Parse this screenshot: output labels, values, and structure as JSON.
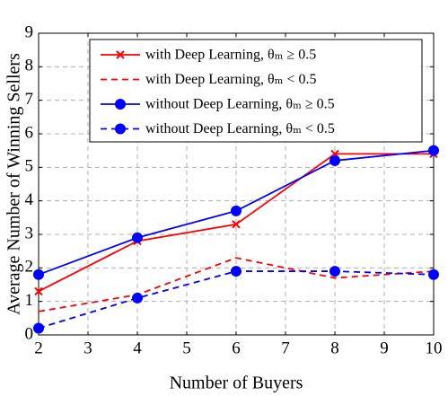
{
  "chart_data": {
    "type": "line",
    "xlabel": "Number of Buyers",
    "ylabel": "Average Number of Winning Sellers",
    "x": [
      2,
      4,
      6,
      8,
      10
    ],
    "series": [
      {
        "name": "with Deep Learning, θₘ ≥ 0.5",
        "color": "#ff0000",
        "linestyle": "solid",
        "marker": "x",
        "values": [
          1.3,
          2.8,
          3.3,
          5.4,
          5.4
        ]
      },
      {
        "name": "with Deep Learning, θₘ < 0.5",
        "color": "#ff0000",
        "linestyle": "dashed",
        "marker": "none",
        "values": [
          0.7,
          1.2,
          2.3,
          1.7,
          1.9
        ]
      },
      {
        "name": "without Deep Learning, θₘ ≥ 0.5",
        "color": "#0000ff",
        "linestyle": "solid",
        "marker": "circle",
        "values": [
          1.8,
          2.9,
          3.7,
          5.2,
          5.5
        ]
      },
      {
        "name": "without Deep Learning, θₘ < 0.5",
        "color": "#0000ff",
        "linestyle": "dashed",
        "marker": "circle",
        "values": [
          0.2,
          1.1,
          1.9,
          1.9,
          1.8
        ]
      }
    ],
    "xlim": [
      2,
      10
    ],
    "xticks": [
      2,
      3,
      4,
      5,
      6,
      7,
      8,
      9,
      10
    ],
    "ylim": [
      0,
      9
    ],
    "yticks": [
      0,
      1,
      2,
      3,
      4,
      5,
      6,
      7,
      8,
      9
    ],
    "grid": true,
    "legend": "upper left"
  }
}
